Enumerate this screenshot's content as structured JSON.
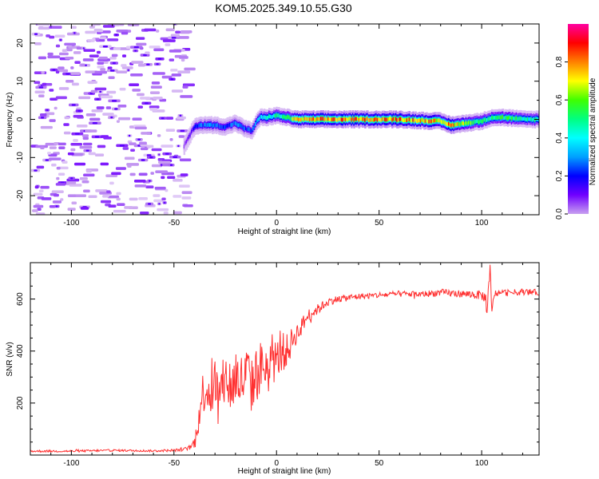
{
  "title": "KOM5.2025.349.10.55.G30",
  "chart_data": [
    {
      "type": "heatmap",
      "name": "spectrogram",
      "xlabel": "Height of straight line (km)",
      "ylabel": "Frequency (Hz)",
      "xlim": [
        -120,
        128
      ],
      "ylim": [
        -25,
        25
      ],
      "xticks": [
        -100,
        -50,
        0,
        50,
        100
      ],
      "yticks": [
        -20,
        -10,
        0,
        10,
        20
      ],
      "colorbar": {
        "label": "Normalized spectral amplitude",
        "range": [
          0,
          1
        ],
        "ticks": [
          0.0,
          0.2,
          0.4,
          0.6,
          0.8
        ],
        "colors": [
          "#ffffff",
          "#c8a0f0",
          "#7000ff",
          "#0000ff",
          "#00a0ff",
          "#00ffff",
          "#00ff80",
          "#40ff00",
          "#ffff00",
          "#ff8000",
          "#ff0000",
          "#ff00a0"
        ]
      },
      "noise_region": {
        "x_range": [
          -120,
          -45
        ],
        "amplitude": [
          0.0,
          0.12
        ]
      },
      "signal_track": {
        "x": [
          -45,
          -42,
          -40,
          -38,
          -35,
          -30,
          -25,
          -20,
          -15,
          -12,
          -10,
          -8,
          -5,
          0,
          5,
          10,
          20,
          30,
          40,
          50,
          60,
          70,
          80,
          85,
          90,
          95,
          100,
          105,
          110,
          115,
          120,
          128
        ],
        "freq_hz": [
          -7,
          -4,
          -2,
          -1.5,
          -1.5,
          -1.5,
          -2,
          -1,
          -2.5,
          -3,
          -1,
          0.5,
          0.5,
          1,
          0.5,
          0,
          0,
          0,
          0,
          0,
          0,
          -0.3,
          -0.5,
          -1.5,
          -1.2,
          -0.8,
          -0.5,
          0.5,
          0.5,
          0.3,
          0,
          0
        ],
        "amplitude": [
          0.15,
          0.2,
          0.25,
          0.3,
          0.35,
          0.35,
          0.3,
          0.35,
          0.3,
          0.3,
          0.35,
          0.4,
          0.45,
          0.5,
          0.55,
          0.75,
          0.8,
          0.8,
          0.82,
          0.8,
          0.8,
          0.78,
          0.75,
          0.8,
          0.7,
          0.6,
          0.55,
          0.5,
          0.55,
          0.55,
          0.5,
          0.5
        ]
      }
    },
    {
      "type": "line",
      "name": "snr",
      "xlabel": "Height of straight line (km)",
      "ylabel": "SNR (v/v)",
      "xlim": [
        -120,
        128
      ],
      "ylim": [
        0,
        740
      ],
      "xticks": [
        -100,
        -50,
        0,
        50,
        100
      ],
      "yticks": [
        200,
        400,
        600
      ],
      "series": [
        {
          "name": "SNR",
          "color": "#ff3030",
          "x": [
            -120,
            -100,
            -80,
            -60,
            -50,
            -45,
            -42,
            -40,
            -38,
            -36,
            -34,
            -32,
            -30,
            -28,
            -26,
            -24,
            -22,
            -20,
            -18,
            -16,
            -14,
            -12,
            -10,
            -8,
            -6,
            -4,
            -2,
            0,
            2,
            4,
            6,
            8,
            10,
            12,
            14,
            16,
            20,
            25,
            30,
            40,
            50,
            60,
            70,
            80,
            90,
            100,
            102,
            103,
            104,
            105,
            106,
            110,
            115,
            120,
            128
          ],
          "y": [
            15,
            15,
            18,
            16,
            18,
            22,
            30,
            45,
            140,
            240,
            260,
            230,
            280,
            220,
            270,
            300,
            250,
            310,
            280,
            290,
            320,
            260,
            310,
            330,
            350,
            300,
            380,
            340,
            420,
            390,
            410,
            450,
            470,
            490,
            520,
            540,
            560,
            590,
            600,
            610,
            615,
            620,
            618,
            625,
            620,
            615,
            600,
            560,
            700,
            540,
            620,
            625,
            625,
            628,
            625
          ],
          "noise": [
            4,
            4,
            4,
            4,
            5,
            6,
            10,
            30,
            60,
            80,
            90,
            90,
            100,
            100,
            100,
            110,
            110,
            120,
            110,
            110,
            110,
            110,
            110,
            110,
            100,
            100,
            90,
            90,
            80,
            70,
            60,
            50,
            40,
            35,
            30,
            25,
            20,
            15,
            14,
            12,
            12,
            12,
            12,
            14,
            14,
            18,
            30,
            60,
            60,
            30,
            14,
            12,
            12,
            12,
            12
          ]
        }
      ]
    }
  ]
}
